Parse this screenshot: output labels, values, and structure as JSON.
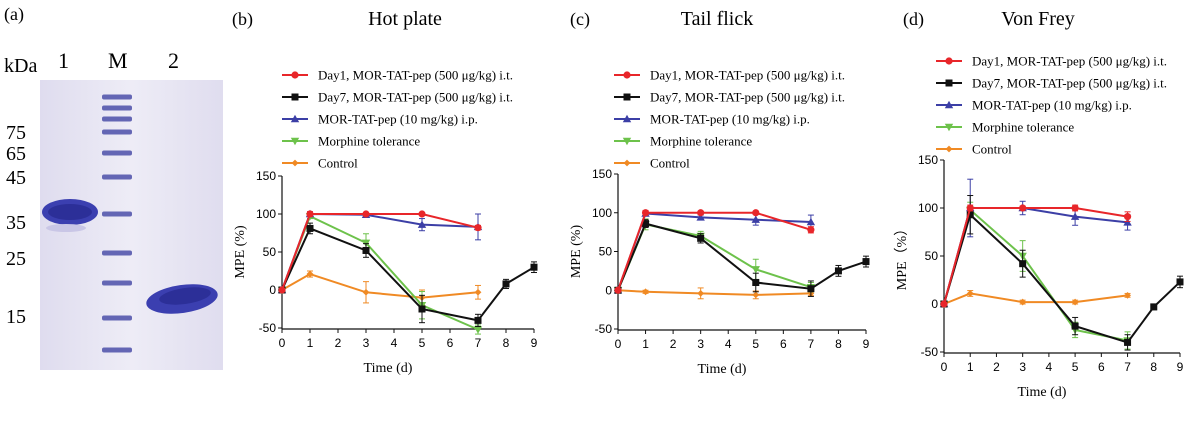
{
  "gel": {
    "panel_label": "(a)",
    "unit_label": "kDa",
    "lane_labels": [
      "1",
      "M",
      "2"
    ],
    "marker_labels": [
      "75",
      "65",
      "45",
      "35",
      "25",
      "15"
    ],
    "colors": {
      "background": "#e9e7f3",
      "band": "#3b3fb0",
      "ladder": "#4b4fa8"
    }
  },
  "legend_entries": [
    {
      "key": "day1",
      "label": "Day1,  MOR-TAT-pep  (500 μg/kg)  i.t.",
      "color": "#e8262a",
      "marker": "circle"
    },
    {
      "key": "day7",
      "label": "Day7,  MOR-TAT-pep  (500 μg/kg)  i.t.",
      "color": "#111111",
      "marker": "square"
    },
    {
      "key": "ip",
      "label": "MOR-TAT-pep  (10 mg/kg)  i.p.",
      "color": "#3c3fa6",
      "marker": "triangle-up"
    },
    {
      "key": "morphine",
      "label": "Morphine tolerance",
      "color": "#6dc24b",
      "marker": "triangle-down"
    },
    {
      "key": "control",
      "label": "Control",
      "color": "#f08a24",
      "marker": "diamond"
    }
  ],
  "chart_data": [
    {
      "panel_label": "(b)",
      "type": "line",
      "title": "Hot plate",
      "xlabel": "Time (d)",
      "ylabel": "MPE (%)",
      "xlim": [
        0,
        9
      ],
      "ylim": [
        -50,
        150
      ],
      "x_ticks": [
        "0",
        "1",
        "2",
        "3",
        "4",
        "5",
        "6",
        "7",
        "8",
        "9"
      ],
      "y_ticks": [
        "150",
        "100",
        "50",
        "0",
        "-50"
      ],
      "legend_position": "top-right",
      "grid": false,
      "series": [
        {
          "key": "day1",
          "x": [
            0,
            1,
            3,
            5,
            7
          ],
          "y": [
            0,
            100,
            100,
            100,
            82
          ],
          "err": [
            0,
            3,
            2,
            2,
            3
          ]
        },
        {
          "key": "day7",
          "x": [
            0,
            1,
            3,
            5,
            7,
            8,
            9
          ],
          "y": [
            0,
            81,
            52,
            -25,
            -40,
            8,
            30
          ],
          "err": [
            0,
            7,
            9,
            18,
            8,
            6,
            7
          ]
        },
        {
          "key": "ip",
          "x": [
            0,
            1,
            3,
            5,
            7
          ],
          "y": [
            0,
            100,
            99,
            86,
            83
          ],
          "err": [
            0,
            3,
            3,
            8,
            17
          ]
        },
        {
          "key": "morphine",
          "x": [
            0,
            1,
            3,
            5,
            7
          ],
          "y": [
            0,
            97,
            62,
            -20,
            -52
          ],
          "err": [
            0,
            3,
            12,
            18,
            6
          ]
        },
        {
          "key": "control",
          "x": [
            0,
            1,
            3,
            5,
            7
          ],
          "y": [
            0,
            21,
            -3,
            -10,
            -3
          ],
          "err": [
            0,
            4,
            14,
            10,
            9
          ]
        }
      ]
    },
    {
      "panel_label": "(c)",
      "type": "line",
      "title": "Tail flick",
      "xlabel": "Time (d)",
      "ylabel": "MPE (%)",
      "xlim": [
        0,
        9
      ],
      "ylim": [
        -50,
        150
      ],
      "x_ticks": [
        "0",
        "1",
        "2",
        "3",
        "4",
        "5",
        "6",
        "7",
        "8",
        "9"
      ],
      "y_ticks": [
        "150",
        "100",
        "50",
        "0",
        "-50"
      ],
      "legend_position": "top-right",
      "grid": false,
      "series": [
        {
          "key": "day1",
          "x": [
            0,
            1,
            3,
            5,
            7
          ],
          "y": [
            0,
            100,
            100,
            100,
            78
          ],
          "err": [
            0,
            3,
            2,
            2,
            4
          ]
        },
        {
          "key": "day7",
          "x": [
            0,
            1,
            3,
            5,
            7,
            8,
            9
          ],
          "y": [
            0,
            86,
            67,
            10,
            2,
            25,
            37
          ],
          "err": [
            0,
            5,
            6,
            12,
            10,
            7,
            7
          ]
        },
        {
          "key": "ip",
          "x": [
            0,
            1,
            3,
            5,
            7
          ],
          "y": [
            0,
            99,
            94,
            91,
            88
          ],
          "err": [
            0,
            3,
            3,
            7,
            9
          ]
        },
        {
          "key": "morphine",
          "x": [
            0,
            1,
            3,
            5,
            7
          ],
          "y": [
            0,
            85,
            70,
            27,
            4
          ],
          "err": [
            0,
            7,
            6,
            13,
            6
          ]
        },
        {
          "key": "control",
          "x": [
            0,
            1,
            3,
            5,
            7
          ],
          "y": [
            0,
            -2,
            -4,
            -6,
            -4
          ],
          "err": [
            0,
            2,
            7,
            5,
            3
          ]
        }
      ]
    },
    {
      "panel_label": "(d)",
      "type": "line",
      "title": "Von Frey",
      "xlabel": "Time (d)",
      "ylabel": "MPE（%）",
      "xlim": [
        0,
        9
      ],
      "ylim": [
        -50,
        150
      ],
      "x_ticks": [
        "0",
        "1",
        "2",
        "3",
        "4",
        "5",
        "6",
        "7",
        "8",
        "9"
      ],
      "y_ticks": [
        "150",
        "100",
        "50",
        "0",
        "-50"
      ],
      "legend_position": "top-right",
      "grid": false,
      "series": [
        {
          "key": "day1",
          "x": [
            0,
            1,
            3,
            5,
            7
          ],
          "y": [
            0,
            100,
            100,
            100,
            91
          ],
          "err": [
            0,
            3,
            2,
            3,
            5
          ]
        },
        {
          "key": "day7",
          "x": [
            0,
            1,
            3,
            5,
            7,
            8,
            9
          ],
          "y": [
            0,
            93,
            42,
            -23,
            -40,
            -3,
            23
          ],
          "err": [
            0,
            20,
            14,
            9,
            8,
            3,
            6
          ]
        },
        {
          "key": "ip",
          "x": [
            0,
            1,
            3,
            5,
            7
          ],
          "y": [
            0,
            100,
            100,
            91,
            85
          ],
          "err": [
            0,
            30,
            7,
            9,
            8
          ]
        },
        {
          "key": "morphine",
          "x": [
            0,
            1,
            3,
            5,
            7
          ],
          "y": [
            0,
            98,
            50,
            -27,
            -38
          ],
          "err": [
            0,
            8,
            16,
            8,
            9
          ]
        },
        {
          "key": "control",
          "x": [
            0,
            1,
            3,
            5,
            7
          ],
          "y": [
            0,
            11,
            2,
            2,
            9
          ],
          "err": [
            0,
            3,
            2,
            2,
            2
          ]
        }
      ]
    }
  ]
}
